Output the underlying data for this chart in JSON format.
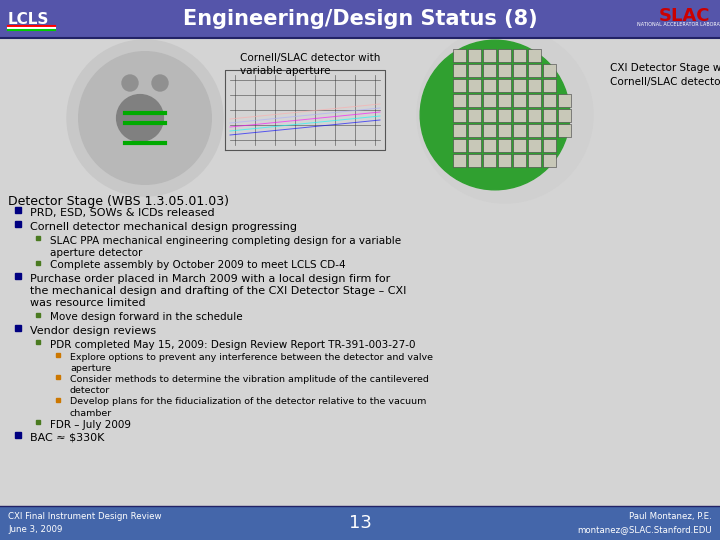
{
  "title": "Engineering/Design Status (8)",
  "header_bg": "#5555aa",
  "header_text_color": "#ffffff",
  "body_bg": "#d4d4d4",
  "footer_bg": "#4466aa",
  "footer_text_color": "#ffffff",
  "image_caption_left": "Cornell/SLAC detector with\nvariable aperture",
  "image_caption_right": "CXI Detector Stage with\nCornell/SLAC detector",
  "section_title": "Detector Stage (WBS 1.3.05.01.03)",
  "bullet_color_l1": "#000080",
  "bullet_color_l2": "#4a7a20",
  "bullet_color_l3": "#cc7700",
  "bullets": [
    {
      "level": 1,
      "text": "PRD, ESD, SOWs & ICDs released"
    },
    {
      "level": 1,
      "text": "Cornell detector mechanical design progressing"
    },
    {
      "level": 2,
      "text": "SLAC PPA mechanical engineering completing design for a variable\naperture detector"
    },
    {
      "level": 2,
      "text": "Complete assembly by October 2009 to meet LCLS CD-4"
    },
    {
      "level": 1,
      "text": "Purchase order placed in March 2009 with a local design firm for\nthe mechanical design and drafting of the CXI Detector Stage – CXI\nwas resource limited"
    },
    {
      "level": 2,
      "text": "Move design forward in the schedule"
    },
    {
      "level": 1,
      "text": "Vendor design reviews"
    },
    {
      "level": 2,
      "text": "PDR completed May 15, 2009: Design Review Report TR-391-003-27-0"
    },
    {
      "level": 3,
      "text": "Explore options to prevent any interference between the detector and valve\naperture"
    },
    {
      "level": 3,
      "text": "Consider methods to determine the vibration amplitude of the cantilevered\ndetector"
    },
    {
      "level": 3,
      "text": "Develop plans for the fiducialization of the detector relative to the vacuum\nchamber"
    },
    {
      "level": 2,
      "text": "FDR – July 2009"
    },
    {
      "level": 1,
      "text": "BAC ≈ $330K"
    }
  ],
  "footer_left": "CXI Final Instrument Design Review\nJune 3, 2009",
  "footer_center": "13",
  "footer_right": "Paul Montanez, P.E.\nmontanez@SLAC.Stanford.EDU"
}
